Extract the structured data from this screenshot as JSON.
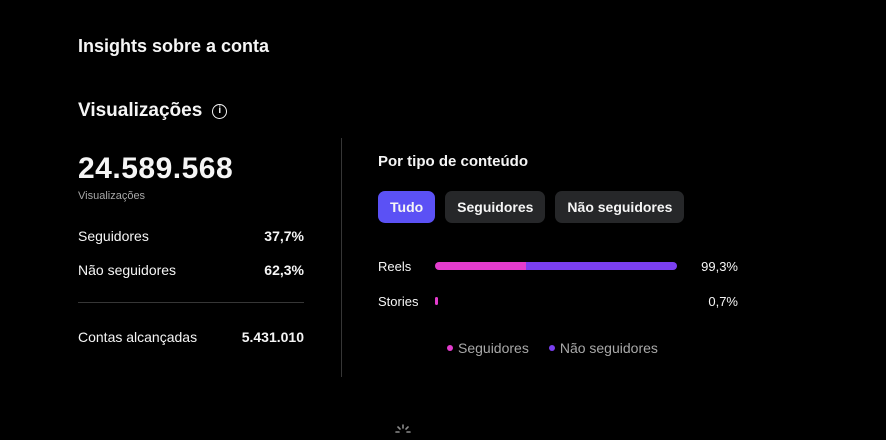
{
  "page": {
    "title": "Insights sobre a conta"
  },
  "views": {
    "title": "Visualizações",
    "info_icon": "info-icon",
    "total": "24.589.568",
    "total_label": "Visualizações",
    "followers_label": "Seguidores",
    "followers_value": "37,7%",
    "non_followers_label": "Não seguidores",
    "non_followers_value": "62,3%",
    "accounts_label": "Contas alcançadas",
    "accounts_value": "5.431.010"
  },
  "content": {
    "title": "Por tipo de conteúdo",
    "tabs": [
      {
        "label": "Tudo",
        "active": true
      },
      {
        "label": "Seguidores",
        "active": false
      },
      {
        "label": "Não seguidores",
        "active": false
      }
    ],
    "rows": [
      {
        "label": "Reels",
        "value": "99,3%",
        "total": 0.993,
        "followers_share": 0.377
      },
      {
        "label": "Stories",
        "value": "0,7%",
        "total": 0.007,
        "followers_share": 1.0
      }
    ],
    "legend": [
      {
        "label": "Seguidores",
        "color": "#e33ccd"
      },
      {
        "label": "Não seguidores",
        "color": "#7a3ff0"
      }
    ]
  },
  "colors": {
    "accent": "#5b51f5",
    "followers": "#e33ccd",
    "non_followers": "#7a3ff0"
  }
}
